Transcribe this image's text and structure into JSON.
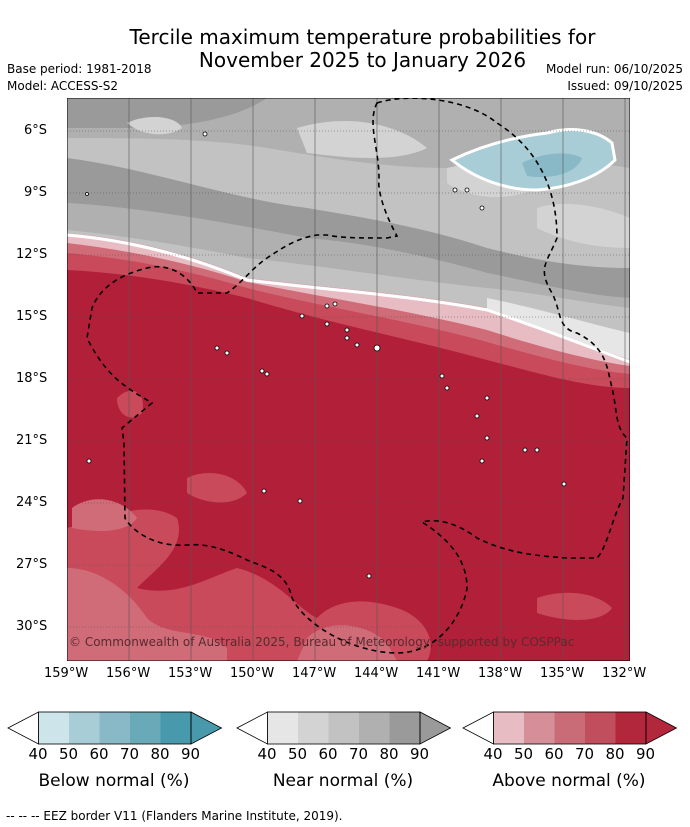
{
  "title_line1": "Tercile maximum temperature probabilities for",
  "title_line2": "November 2025 to January 2026",
  "base_period": "Base period: 1981-2018",
  "model": "Model: ACCESS-S2",
  "model_run": "Model run: 06/10/2025",
  "issued": "Issued: 09/10/2025",
  "copyright": "© Commonwealth of Australia 2025, Bureau of Meteorology, supported by COSPPac",
  "lat_labels": [
    "6°S",
    "9°S",
    "12°S",
    "15°S",
    "18°S",
    "21°S",
    "24°S",
    "27°S",
    "30°S"
  ],
  "lon_labels": [
    "159°W",
    "156°W",
    "153°W",
    "150°W",
    "147°W",
    "144°W",
    "141°W",
    "138°W",
    "135°W",
    "132°W"
  ],
  "colorbars": [
    {
      "caption": "Below normal (%)",
      "ticks": [
        "40",
        "50",
        "60",
        "70",
        "80",
        "90"
      ],
      "colors": [
        "#ffffff",
        "#cde4ea",
        "#a9cdd6",
        "#89b9c6",
        "#6aa9b8",
        "#4899ab"
      ]
    },
    {
      "caption": "Near normal (%)",
      "ticks": [
        "40",
        "50",
        "60",
        "70",
        "80",
        "90"
      ],
      "colors": [
        "#ffffff",
        "#e6e6e6",
        "#d3d3d3",
        "#c2c2c2",
        "#b0b0b0",
        "#9a9a9a"
      ]
    },
    {
      "caption": "Above normal (%)",
      "ticks": [
        "40",
        "50",
        "60",
        "70",
        "80",
        "90"
      ],
      "colors": [
        "#ffffff",
        "#e7bcc3",
        "#d68f99",
        "#c96c78",
        "#c14e5c",
        "#b3273d"
      ]
    }
  ],
  "footnote": "--  --  -- EEZ border V11 (Flanders Marine Institute, 2019)."
}
